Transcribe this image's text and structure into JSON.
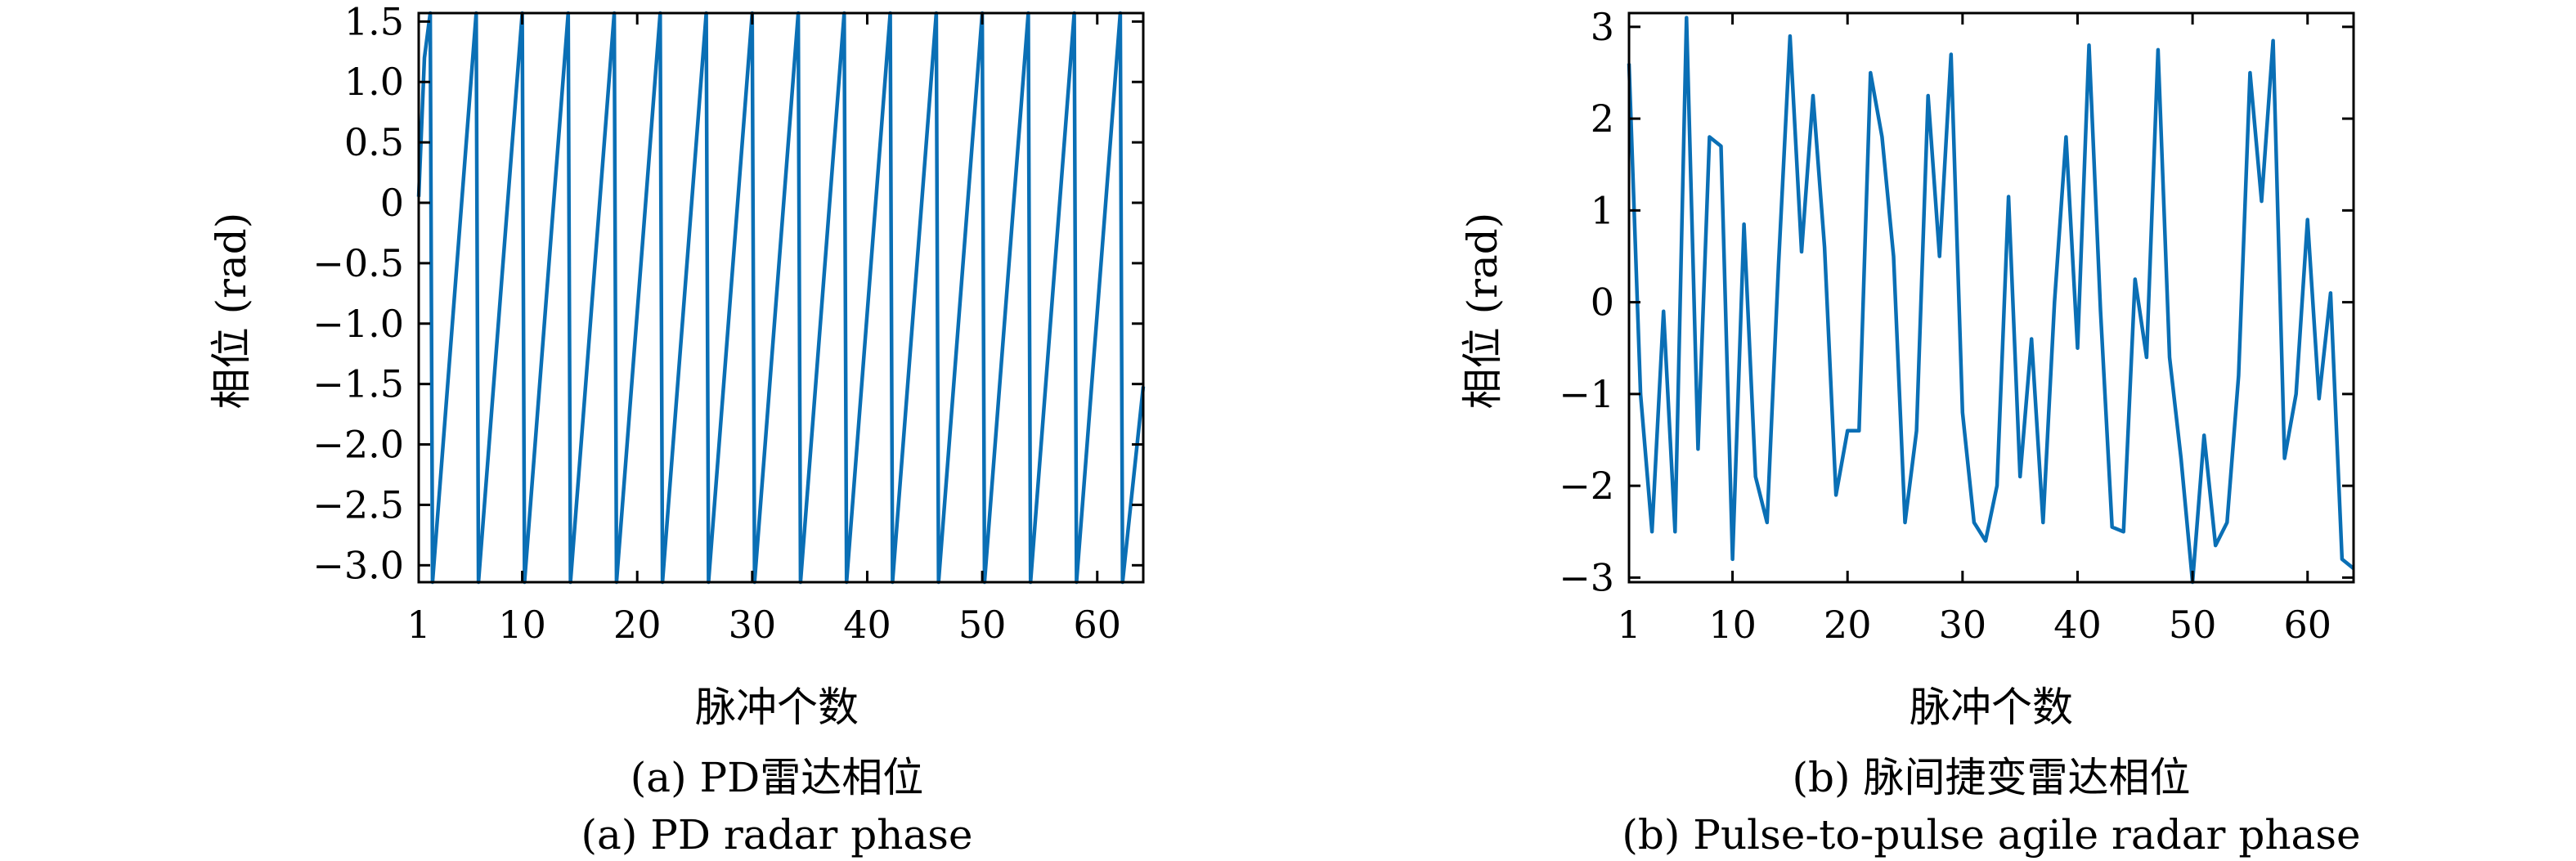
{
  "chart_data": [
    {
      "type": "line",
      "xlabel": "脉冲个数",
      "ylabel": "相位 (rad)",
      "caption_cn": "(a) PD雷达相位",
      "caption_en": "(a) PD radar phase",
      "xlim": [
        1,
        64
      ],
      "ylim": [
        -3.14,
        1.57
      ],
      "xticks": [
        1,
        10,
        20,
        30,
        40,
        50,
        60
      ],
      "yticks": [
        1.5,
        1.0,
        0.5,
        0,
        -0.5,
        -1.0,
        -1.5,
        -2.0,
        -2.5,
        -3.0
      ],
      "ytick_labels": [
        "1.5",
        "1.0",
        "0.5",
        "0",
        "−0.5",
        "−1.0",
        "−1.5",
        "−2.0",
        "−2.5",
        "−3.0"
      ],
      "grid": false,
      "color": "#0a6fb5",
      "series": [
        {
          "x": [
            1,
            1.5,
            2,
            2.2,
            6,
            6.2,
            10,
            10.2,
            14,
            14.2,
            18,
            18.2,
            22,
            22.2,
            26,
            26.2,
            30,
            30.2,
            34,
            34.2,
            38,
            38.2,
            42,
            42.2,
            46,
            46.2,
            50,
            50.2,
            54,
            54.2,
            58,
            58.2,
            62,
            62.2,
            64
          ],
          "y": [
            0.05,
            1.2,
            1.57,
            -3.14,
            1.57,
            -3.14,
            1.57,
            -3.14,
            1.57,
            -3.14,
            1.57,
            -3.14,
            1.57,
            -3.14,
            1.57,
            -3.14,
            1.57,
            -3.14,
            1.57,
            -3.14,
            1.57,
            -3.14,
            1.57,
            -3.14,
            1.57,
            -3.14,
            1.57,
            -3.14,
            1.57,
            -3.14,
            1.57,
            -3.14,
            1.57,
            -3.14,
            -1.52
          ]
        }
      ]
    },
    {
      "type": "line",
      "xlabel": "脉冲个数",
      "ylabel": "相位 (rad)",
      "caption_cn": "(b) 脉间捷变雷达相位",
      "caption_en": "(b) Pulse-to-pulse agile radar phase",
      "xlim": [
        1,
        64
      ],
      "ylim": [
        -3.05,
        3.15
      ],
      "xticks": [
        1,
        10,
        20,
        30,
        40,
        50,
        60
      ],
      "yticks": [
        3,
        2,
        1,
        0,
        -1,
        -2,
        -3
      ],
      "ytick_labels": [
        "3",
        "2",
        "1",
        "0",
        "−1",
        "−2",
        "−3"
      ],
      "grid": false,
      "color": "#0a6fb5",
      "series": [
        {
          "x": [
            1,
            2,
            3,
            4,
            5,
            6,
            7,
            8,
            9,
            10,
            11,
            12,
            13,
            14,
            15,
            16,
            17,
            18,
            19,
            20,
            21,
            22,
            23,
            24,
            25,
            26,
            27,
            28,
            29,
            30,
            31,
            32,
            33,
            34,
            35,
            36,
            37,
            38,
            39,
            40,
            41,
            42,
            43,
            44,
            45,
            46,
            47,
            48,
            49,
            50,
            51,
            52,
            53,
            54,
            55,
            56,
            57,
            58,
            59,
            60,
            61,
            62,
            63,
            64
          ],
          "y": [
            2.6,
            -1.0,
            -2.5,
            -0.1,
            -2.5,
            3.1,
            -1.6,
            1.8,
            1.7,
            -2.8,
            0.85,
            -1.9,
            -2.4,
            0.4,
            2.9,
            0.55,
            2.25,
            0.6,
            -2.1,
            -1.4,
            -1.4,
            2.5,
            1.8,
            0.5,
            -2.4,
            -1.4,
            2.25,
            0.5,
            2.7,
            -1.2,
            -2.4,
            -2.6,
            -2.0,
            1.15,
            -1.9,
            -0.4,
            -2.4,
            0.0,
            1.8,
            -0.5,
            2.8,
            -0.1,
            -2.45,
            -2.5,
            0.25,
            -0.6,
            2.75,
            -0.6,
            -1.7,
            -3.05,
            -1.45,
            -2.65,
            -2.4,
            -0.8,
            2.5,
            1.1,
            2.85,
            -1.7,
            -1.0,
            0.9,
            -1.05,
            0.1,
            -2.8,
            -2.9
          ]
        }
      ]
    }
  ]
}
